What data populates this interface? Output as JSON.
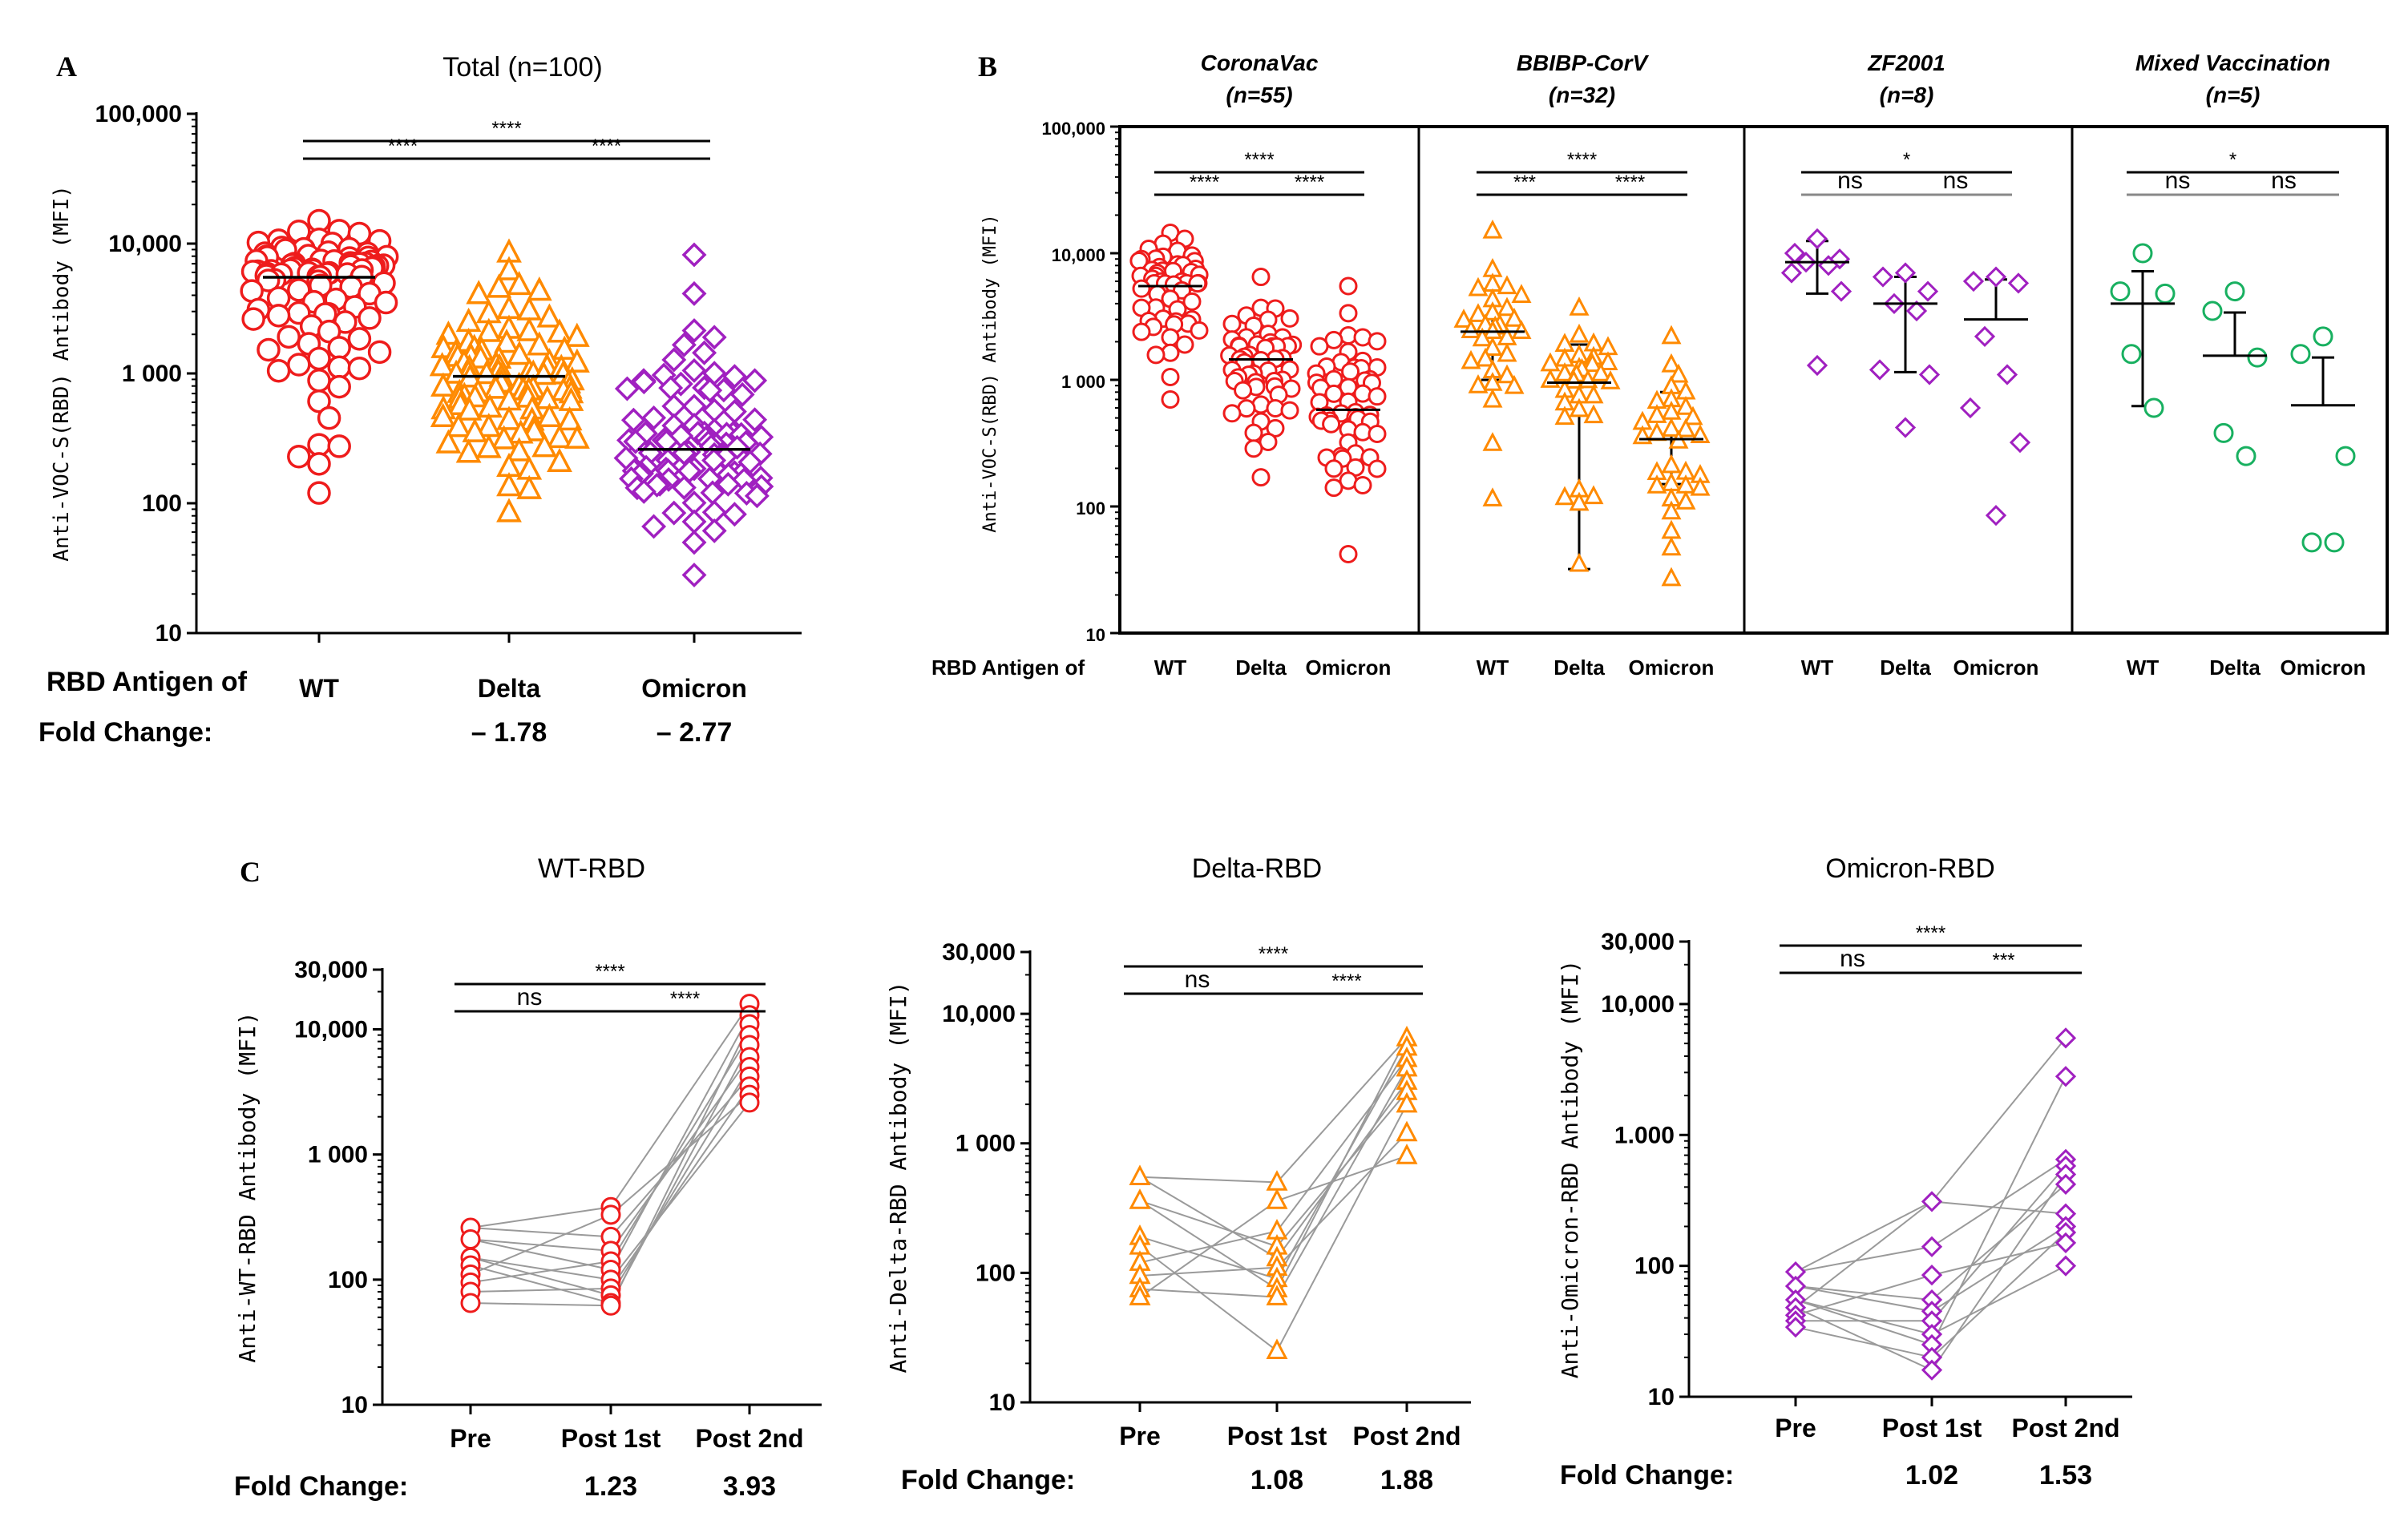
{
  "colors": {
    "WT": "#ee1c1c",
    "Delta": "#ff8a00",
    "Omicron": "#a020c0",
    "Mixed": "#18b060",
    "axis": "#000000",
    "line": "#9a9a9a"
  },
  "chart_data": [
    {
      "panel": "A",
      "type": "scatter",
      "title": "Total (n=100)",
      "ylabel": "Anti-VOC-S(RBD) Antibody (MFI)",
      "yscale": "log",
      "ylim": [
        10,
        100000
      ],
      "yticks": [
        {
          "v": 100000,
          "label": "100,000"
        },
        {
          "v": 10000,
          "label": "10,000"
        },
        {
          "v": 1000,
          "label": "1 000"
        },
        {
          "v": 100,
          "label": "100"
        },
        {
          "v": 10,
          "label": "10"
        }
      ],
      "row_label": "RBD Antigen of",
      "fold_label": "Fold Change:",
      "categories": [
        "WT",
        "Delta",
        "Omicron"
      ],
      "fold_changes": [
        "",
        "– 1.78",
        "– 2.77"
      ],
      "series": [
        {
          "name": "WT",
          "marker": "circle",
          "median": 5500,
          "min": 120,
          "max": 15000
        },
        {
          "name": "Delta",
          "marker": "triangle",
          "median": 950,
          "min": 85,
          "max": 8500
        },
        {
          "name": "Omicron",
          "marker": "diamond",
          "median": 260,
          "min": 28,
          "max": 8200
        }
      ],
      "significance": [
        {
          "from": 0,
          "to": 2,
          "label": "****"
        },
        {
          "from": 0,
          "to": 1,
          "label": "****"
        },
        {
          "from": 1,
          "to": 2,
          "label": "****"
        }
      ]
    },
    {
      "panel": "B",
      "type": "scatter",
      "ylabel": "Anti-VOC-S(RBD) Antibody (MFI)",
      "yscale": "log",
      "ylim": [
        10,
        100000
      ],
      "yticks": [
        {
          "v": 100000,
          "label": "100,000"
        },
        {
          "v": 10000,
          "label": "10,000"
        },
        {
          "v": 1000,
          "label": "1 000"
        },
        {
          "v": 100,
          "label": "100"
        },
        {
          "v": 10,
          "label": "10"
        }
      ],
      "row_label": "RBD Antigen of",
      "groups": [
        {
          "name": "CoronaVac",
          "n": "(n=55)",
          "color": "WT",
          "marker": "circle",
          "categories": [
            "WT",
            "Delta",
            "Omicron"
          ],
          "means": [
            5500,
            1450,
            580
          ],
          "sd_hi": [
            null,
            null,
            null
          ],
          "sd_lo": [
            null,
            null,
            null
          ],
          "ranges": [
            [
              700,
              14500
            ],
            [
              170,
              6500
            ],
            [
              42,
              5500
            ]
          ],
          "sig": [
            {
              "from": 0,
              "to": 2,
              "label": "****"
            },
            {
              "from": 0,
              "to": 1,
              "label": "****"
            },
            {
              "from": 1,
              "to": 2,
              "label": "****"
            }
          ]
        },
        {
          "name": "BBIBP-CorV",
          "n": "(n=32)",
          "color": "Delta",
          "marker": "triangle",
          "categories": [
            "WT",
            "Delta",
            "Omicron"
          ],
          "means": [
            2400,
            950,
            340
          ],
          "sd_hi": [
            5200,
            1900,
            800
          ],
          "sd_lo": [
            1000,
            32,
            150
          ],
          "ranges": [
            [
              115,
              15000
            ],
            [
              35,
              3700
            ],
            [
              27,
              2200
            ]
          ],
          "sig": [
            {
              "from": 0,
              "to": 2,
              "label": "****"
            },
            {
              "from": 0,
              "to": 1,
              "label": "***"
            },
            {
              "from": 1,
              "to": 2,
              "label": "****"
            }
          ]
        },
        {
          "name": "ZF2001",
          "n": "(n=8)",
          "color": "Omicron",
          "marker": "diamond",
          "categories": [
            "WT",
            "Delta",
            "Omicron"
          ],
          "means": [
            8500,
            4000,
            3000
          ],
          "sd_hi": [
            12500,
            6500,
            6200
          ],
          "sd_lo": [
            4800,
            1150,
            null
          ],
          "points": [
            [
              13000,
              10000,
              9000,
              8500,
              8000,
              7000,
              5000,
              1300
            ],
            [
              7000,
              6500,
              5000,
              4000,
              3500,
              1200,
              1100,
              420
            ],
            [
              6500,
              6000,
              5800,
              2200,
              1100,
              600,
              320,
              85
            ]
          ],
          "sig": [
            {
              "from": 0,
              "to": 2,
              "label": "*"
            },
            {
              "from": 0,
              "to": 1,
              "label": "ns"
            },
            {
              "from": 1,
              "to": 2,
              "label": "ns"
            }
          ]
        },
        {
          "name": "Mixed Vaccination",
          "n": "(n=5)",
          "color": "Mixed",
          "marker": "circle",
          "categories": [
            "WT",
            "Delta",
            "Omicron"
          ],
          "means": [
            4000,
            1550,
            630
          ],
          "sd_hi": [
            7200,
            3400,
            1500
          ],
          "sd_lo": [
            620,
            null,
            null
          ],
          "points": [
            [
              10000,
              5000,
              4800,
              1600,
              600
            ],
            [
              5000,
              3500,
              1500,
              380,
              250
            ],
            [
              2200,
              1600,
              250,
              52,
              52
            ]
          ],
          "sig": [
            {
              "from": 0,
              "to": 2,
              "label": "*"
            },
            {
              "from": 0,
              "to": 1,
              "label": "ns"
            },
            {
              "from": 1,
              "to": 2,
              "label": "ns"
            }
          ]
        }
      ]
    },
    {
      "panel": "C",
      "type": "line",
      "fold_label": "Fold Change:",
      "categories": [
        "Pre",
        "Post 1st",
        "Post 2nd"
      ],
      "plots": [
        {
          "title": "WT-RBD",
          "color": "WT",
          "marker": "circle",
          "ylabel": "Anti-WT-RBD Antibody (MFI)",
          "yticks": [
            {
              "v": 30000,
              "label": "30,000"
            },
            {
              "v": 10000,
              "label": "10,000"
            },
            {
              "v": 1000,
              "label": "1 000"
            },
            {
              "v": 100,
              "label": "100"
            },
            {
              "v": 10,
              "label": "10"
            }
          ],
          "ylim": [
            10,
            30000
          ],
          "fold_changes": [
            "",
            "1.23",
            "3.93"
          ],
          "sig": [
            {
              "from": 0,
              "to": 2,
              "label": "****"
            },
            {
              "from": 0,
              "to": 1,
              "label": "ns"
            },
            {
              "from": 1,
              "to": 2,
              "label": "****"
            }
          ],
          "pre": [
            260,
            210,
            150,
            130,
            110,
            95,
            80,
            65
          ],
          "post1": [
            380,
            330,
            220,
            170,
            140,
            120,
            100,
            85,
            75,
            65,
            62
          ],
          "post2": [
            16000,
            13000,
            11000,
            9000,
            7500,
            6000,
            5000,
            4200,
            3500,
            3000,
            2600
          ]
        },
        {
          "title": "Delta-RBD",
          "color": "Delta",
          "marker": "triangle",
          "ylabel": "Anti-Delta-RBD Antibody (MFI)",
          "yticks": [
            {
              "v": 30000,
              "label": "30,000"
            },
            {
              "v": 10000,
              "label": "10,000"
            },
            {
              "v": 1000,
              "label": "1 000"
            },
            {
              "v": 100,
              "label": "100"
            },
            {
              "v": 10,
              "label": "10"
            }
          ],
          "ylim": [
            10,
            30000
          ],
          "fold_changes": [
            "",
            "1.08",
            "1.88"
          ],
          "sig": [
            {
              "from": 0,
              "to": 2,
              "label": "****"
            },
            {
              "from": 0,
              "to": 1,
              "label": "ns"
            },
            {
              "from": 1,
              "to": 2,
              "label": "****"
            }
          ],
          "pre": [
            550,
            360,
            190,
            160,
            120,
            95,
            75,
            65
          ],
          "post1": [
            500,
            360,
            210,
            160,
            130,
            110,
            90,
            75,
            65,
            25
          ],
          "post2": [
            6500,
            5500,
            4500,
            3800,
            3000,
            2500,
            2000,
            1200,
            800
          ]
        },
        {
          "title": "Omicron-RBD",
          "color": "Omicron",
          "marker": "diamond",
          "ylabel": "Anti-Omicron-RBD Antibody (MFI)",
          "yticks": [
            {
              "v": 30000,
              "label": "30,000"
            },
            {
              "v": 10000,
              "label": "10,000"
            },
            {
              "v": 1000,
              "label": "1.000"
            },
            {
              "v": 100,
              "label": "100"
            },
            {
              "v": 10,
              "label": "10"
            }
          ],
          "ylim": [
            10,
            30000
          ],
          "fold_changes": [
            "",
            "1.02",
            "1.53"
          ],
          "sig": [
            {
              "from": 0,
              "to": 2,
              "label": "****"
            },
            {
              "from": 0,
              "to": 1,
              "label": "ns"
            },
            {
              "from": 1,
              "to": 2,
              "label": "***"
            }
          ],
          "pre": [
            90,
            70,
            55,
            48,
            42,
            38,
            34
          ],
          "post1": [
            310,
            140,
            85,
            55,
            45,
            38,
            30,
            25,
            20,
            16
          ],
          "post2": [
            5500,
            2800,
            650,
            580,
            500,
            420,
            250,
            200,
            180,
            150,
            100
          ]
        }
      ]
    }
  ]
}
